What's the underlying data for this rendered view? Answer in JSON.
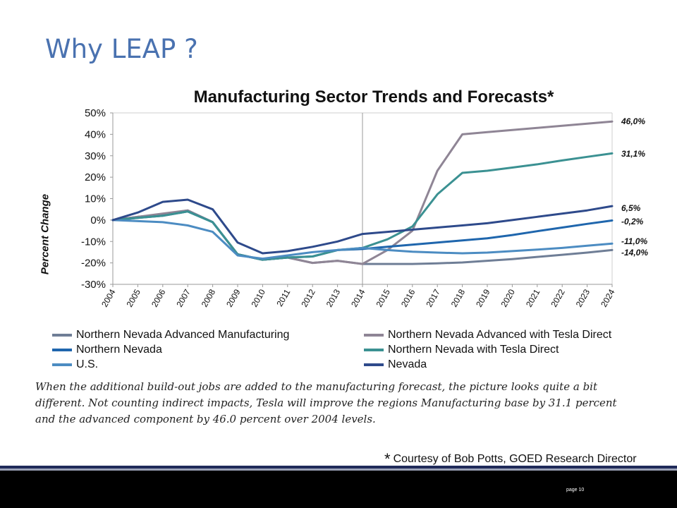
{
  "slide": {
    "title": "Why LEAP ?",
    "caption": "When the additional build-out jobs are added to the manufacturing forecast, the picture looks quite a bit different.  Not counting indirect impacts,  Tesla will improve the regions Manufacturing base by 31.1 percent and the advanced component by 46.0 percent over 2004 levels.",
    "credit_star": "*",
    "credit": "Courtesy of Bob Potts, GOED Research Director",
    "page_label": "page 10"
  },
  "chart_data": {
    "type": "line",
    "title": "Manufacturing Sector Trends and Forecasts*",
    "ylabel": "Percent Change",
    "xlabel": "",
    "x": [
      "2004",
      "2005",
      "2006",
      "2007",
      "2008",
      "2009",
      "2010",
      "2011",
      "2012",
      "2013",
      "2014",
      "2015",
      "2016",
      "2017",
      "2018",
      "2019",
      "2020",
      "2021",
      "2022",
      "2023",
      "2024"
    ],
    "y_ticks": [
      "50%",
      "40%",
      "30%",
      "20%",
      "10%",
      "0%",
      "-10%",
      "-20%",
      "-30%"
    ],
    "ylim": [
      -30,
      50
    ],
    "forecast_divider_x": "2014",
    "grid": false,
    "legend_position": "bottom",
    "end_labels": [
      "46,0%",
      "31,1%",
      "6,5%",
      "-0,2%",
      "-11,0%",
      "-14,0%"
    ],
    "series": [
      {
        "name": "Northern Nevada Advanced Manufacturing",
        "color": "#6f7e96",
        "values": [
          0,
          1.5,
          2.5,
          4.5,
          -1,
          -16,
          -18.5,
          -17.5,
          -20,
          -19,
          -20.5,
          -20.5,
          -20.5,
          -20.2,
          -19.8,
          -19,
          -18.2,
          -17.2,
          -16.2,
          -15.2,
          -14.0
        ]
      },
      {
        "name": "Northern Nevada Advanced with Tesla Direct",
        "color": "#8f8595",
        "values": [
          0,
          1.5,
          3,
          4.5,
          -1,
          -16,
          -18.5,
          -17.5,
          -20,
          -19,
          -20.5,
          -14,
          -5,
          23,
          40,
          41,
          42,
          43,
          44,
          45,
          46.0
        ]
      },
      {
        "name": "Northern Nevada",
        "color": "#1f66ad",
        "values": [
          0,
          1,
          2,
          4,
          -1,
          -16,
          -18.5,
          -17.5,
          -17,
          -14,
          -13.5,
          -12.5,
          -11.5,
          -10.5,
          -9.5,
          -8.5,
          -7,
          -5.2,
          -3.5,
          -1.8,
          -0.2
        ]
      },
      {
        "name": "Northern Nevada with Tesla Direct",
        "color": "#3b9192",
        "values": [
          0,
          1,
          2,
          4,
          -1,
          -16,
          -18.5,
          -17.5,
          -17,
          -14,
          -13,
          -9,
          -3,
          12,
          22,
          23,
          24.5,
          26,
          27.8,
          29.5,
          31.1
        ]
      },
      {
        "name": "U.S.",
        "color": "#4c8cc2",
        "values": [
          0,
          -0.5,
          -1,
          -2.5,
          -5.5,
          -16.5,
          -18,
          -16.5,
          -15,
          -14,
          -13,
          -14,
          -14.8,
          -15.2,
          -15.5,
          -15.2,
          -14.5,
          -13.8,
          -13,
          -12,
          -11.0
        ]
      },
      {
        "name": "Nevada",
        "color": "#2e4a8b",
        "values": [
          0,
          3.5,
          8.5,
          9.5,
          5,
          -10.5,
          -15.5,
          -14.5,
          -12.5,
          -10,
          -6.5,
          -5.5,
          -4.5,
          -3.5,
          -2.5,
          -1.5,
          0,
          1.5,
          3,
          4.5,
          6.5
        ]
      }
    ]
  }
}
